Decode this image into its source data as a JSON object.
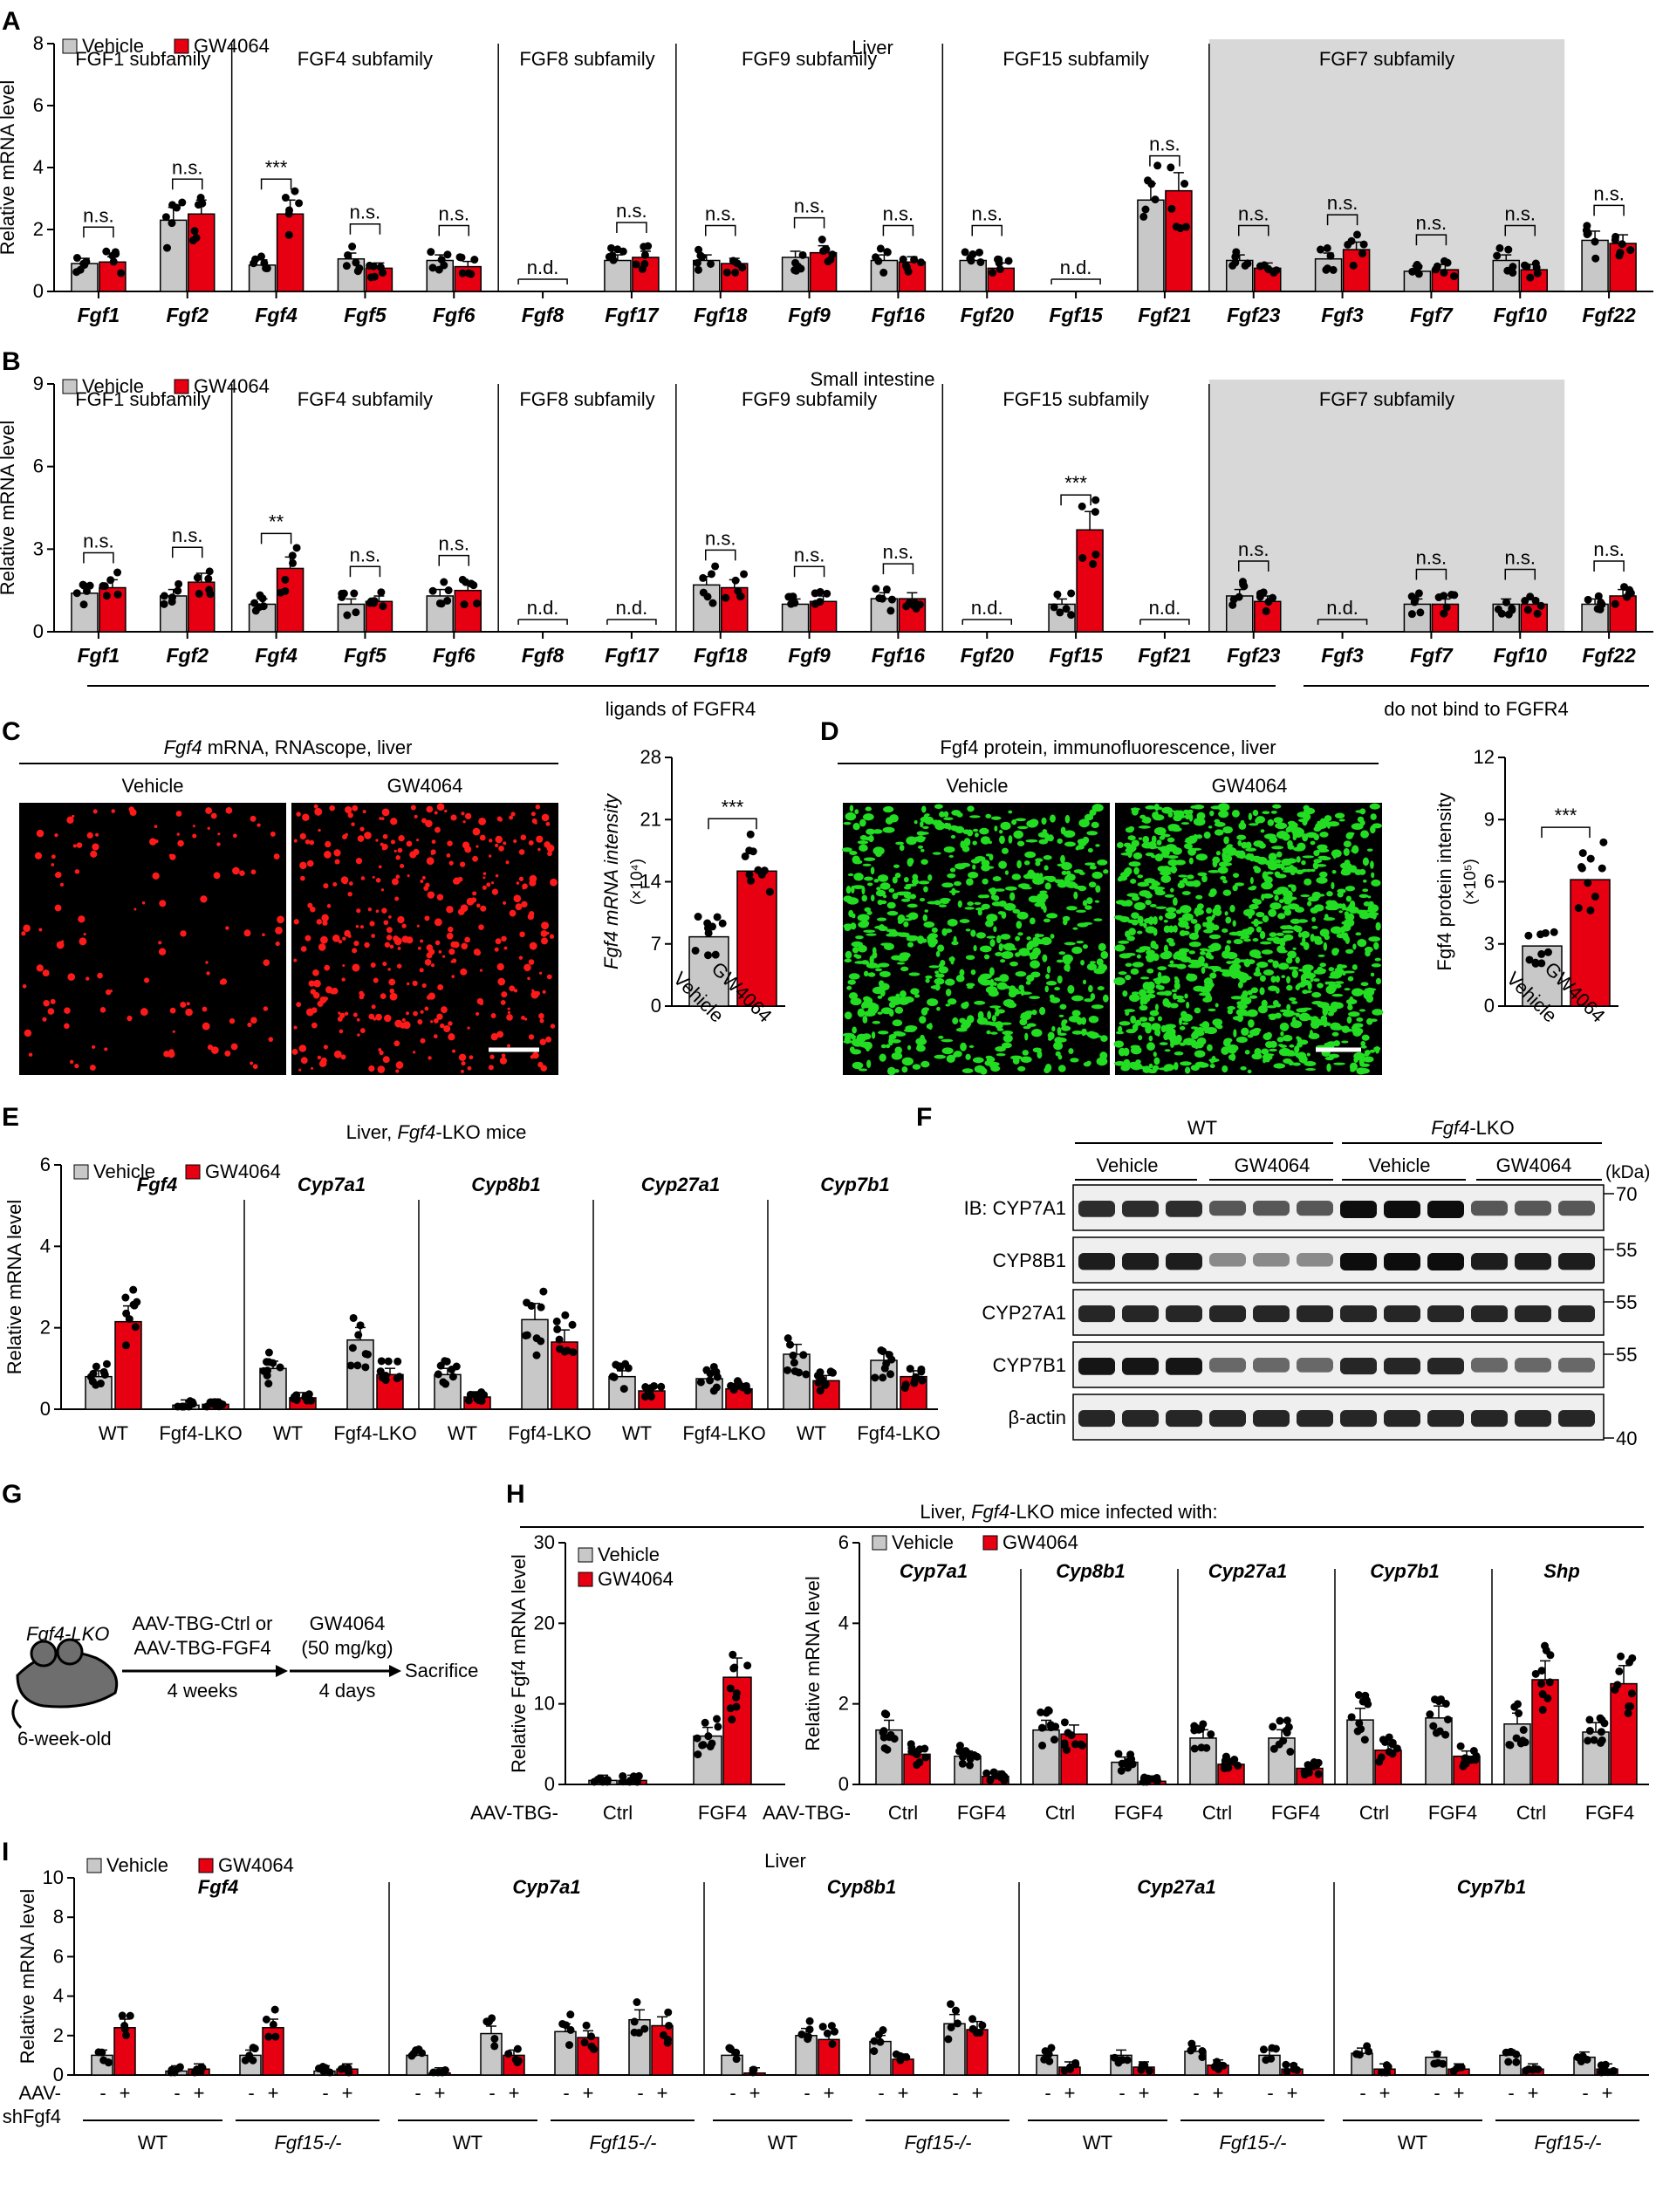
{
  "colors": {
    "vehicle": "#c8c8c8",
    "gw": "#e60012",
    "shade": "#d8d8d8",
    "red_micro": "#ff1a1a",
    "green_micro": "#22dd22"
  },
  "panel_letters": [
    "A",
    "B",
    "C",
    "D",
    "E",
    "F",
    "G",
    "H",
    "I"
  ],
  "legend": {
    "vehicle": "Vehicle",
    "gw": "GW4064"
  },
  "chart_data": [
    {
      "panel": "A",
      "type": "bar",
      "title": "Liver",
      "ylabel": "Relative mRNA level",
      "ylim": [
        0,
        8
      ],
      "yticks": [
        0,
        2,
        4,
        6,
        8
      ],
      "subfamilies": [
        {
          "name": "FGF1 subfamily",
          "genes": 2
        },
        {
          "name": "FGF4 subfamily",
          "genes": 3
        },
        {
          "name": "FGF8 subfamily",
          "genes": 2
        },
        {
          "name": "FGF9 subfamily",
          "genes": 3
        },
        {
          "name": "FGF15 subfamily",
          "genes": 3
        },
        {
          "name": "FGF7 subfamily",
          "genes": 4,
          "shaded": true
        }
      ],
      "categories": [
        "Fgf1",
        "Fgf2",
        "Fgf4",
        "Fgf5",
        "Fgf6",
        "Fgf8",
        "Fgf17",
        "Fgf18",
        "Fgf9",
        "Fgf16",
        "Fgf20",
        "Fgf15",
        "Fgf21",
        "Fgf23",
        "Fgf3",
        "Fgf7",
        "Fgf10",
        "Fgf22"
      ],
      "series": [
        {
          "name": "Vehicle",
          "values": [
            0.9,
            2.3,
            0.85,
            1.05,
            1.0,
            null,
            1.0,
            1.0,
            1.1,
            1.0,
            1.0,
            null,
            2.95,
            1.0,
            1.05,
            0.65,
            1.0,
            1.65
          ]
        },
        {
          "name": "GW4064",
          "values": [
            0.95,
            2.5,
            2.5,
            0.75,
            0.8,
            null,
            1.1,
            0.9,
            1.25,
            0.95,
            0.75,
            null,
            3.25,
            0.75,
            1.35,
            0.7,
            0.7,
            1.55
          ]
        }
      ],
      "annotations": [
        "n.s.",
        "n.s.",
        "***",
        "n.s.",
        "n.s.",
        "n.d.",
        "n.s.",
        "n.s.",
        "n.s.",
        "n.s.",
        "n.s.",
        "n.d.",
        "n.s.",
        "n.s.",
        "n.s.",
        "n.s.",
        "n.s.",
        "n.s."
      ]
    },
    {
      "panel": "B",
      "type": "bar",
      "title": "Small intestine",
      "ylabel": "Relative mRNA level",
      "ylim": [
        0,
        9
      ],
      "yticks": [
        0,
        3,
        6,
        9
      ],
      "subfamilies": [
        {
          "name": "FGF1 subfamily",
          "genes": 2
        },
        {
          "name": "FGF4 subfamily",
          "genes": 3
        },
        {
          "name": "FGF8 subfamily",
          "genes": 2
        },
        {
          "name": "FGF9 subfamily",
          "genes": 3
        },
        {
          "name": "FGF15 subfamily",
          "genes": 3
        },
        {
          "name": "FGF7 subfamily",
          "genes": 4,
          "shaded": true
        }
      ],
      "categories": [
        "Fgf1",
        "Fgf2",
        "Fgf4",
        "Fgf5",
        "Fgf6",
        "Fgf8",
        "Fgf17",
        "Fgf18",
        "Fgf9",
        "Fgf16",
        "Fgf20",
        "Fgf15",
        "Fgf21",
        "Fgf23",
        "Fgf3",
        "Fgf7",
        "Fgf10",
        "Fgf22"
      ],
      "series": [
        {
          "name": "Vehicle",
          "values": [
            1.4,
            1.3,
            1.0,
            1.0,
            1.3,
            null,
            null,
            1.7,
            1.0,
            1.2,
            null,
            1.0,
            null,
            1.3,
            null,
            1.0,
            1.0,
            1.0
          ]
        },
        {
          "name": "GW4064",
          "values": [
            1.6,
            1.8,
            2.3,
            1.1,
            1.5,
            null,
            null,
            1.6,
            1.1,
            1.2,
            null,
            3.7,
            null,
            1.1,
            null,
            1.0,
            1.0,
            1.3
          ]
        }
      ],
      "annotations": [
        "n.s.",
        "n.s.",
        "**",
        "n.s.",
        "n.s.",
        "n.d.",
        "n.d.",
        "n.s.",
        "n.s.",
        "n.s.",
        "n.d.",
        "***",
        "n.d.",
        "n.s.",
        "n.d.",
        "n.s.",
        "n.s.",
        "n.s."
      ],
      "groups": [
        "ligands of FGFR4",
        "do not bind to FGFR4"
      ]
    },
    {
      "panel": "C",
      "type": "bar",
      "ylabel": "Fgf4 mRNA intensity",
      "ylabel_unit": "(×10⁴)",
      "ylim": [
        0,
        28
      ],
      "yticks": [
        0,
        7,
        14,
        21,
        28
      ],
      "categories": [
        "Vehicle",
        "GW4064"
      ],
      "values": [
        7.8,
        15.2
      ],
      "annotation": "***"
    },
    {
      "panel": "D",
      "type": "bar",
      "ylabel": "Fgf4 protein intensity",
      "ylabel_unit": "(×10⁵)",
      "ylim": [
        0,
        12
      ],
      "yticks": [
        0,
        3,
        6,
        9,
        12
      ],
      "categories": [
        "Vehicle",
        "GW4064"
      ],
      "values": [
        2.9,
        6.1
      ],
      "annotation": "***"
    },
    {
      "panel": "E",
      "type": "bar",
      "title": "Liver, Fgf4-LKO mice",
      "ylabel": "Relative mRNA level",
      "ylim": [
        0,
        6
      ],
      "yticks": [
        0,
        2,
        4,
        6
      ],
      "genes": [
        "Fgf4",
        "Cyp7a1",
        "Cyp8b1",
        "Cyp27a1",
        "Cyp7b1"
      ],
      "groups": [
        "WT",
        "Fgf4-LKO"
      ],
      "series": [
        {
          "name": "Vehicle",
          "values": [
            [
              0.8,
              0.1
            ],
            [
              1.0,
              1.7
            ],
            [
              0.85,
              2.2
            ],
            [
              0.8,
              0.75
            ],
            [
              1.35,
              1.2
            ]
          ]
        },
        {
          "name": "GW4064",
          "values": [
            [
              2.15,
              0.12
            ],
            [
              0.28,
              0.85
            ],
            [
              0.3,
              1.65
            ],
            [
              0.45,
              0.5
            ],
            [
              0.7,
              0.8
            ]
          ]
        }
      ]
    },
    {
      "panel": "H",
      "type": "bar",
      "title": "Liver, Fgf4-LKO mice infected with:",
      "left": {
        "ylabel": "Relative Fgf4 mRNA level",
        "ylim": [
          0,
          30
        ],
        "yticks": [
          0,
          10,
          20,
          30
        ],
        "groups": [
          "Ctrl",
          "FGF4"
        ],
        "series": [
          {
            "name": "Vehicle",
            "values": [
              0.5,
              6.0
            ]
          },
          {
            "name": "GW4064",
            "values": [
              0.5,
              13.3
            ]
          }
        ]
      },
      "right": {
        "ylabel": "Relative mRNA level",
        "ylim": [
          0,
          6
        ],
        "yticks": [
          0,
          2,
          4,
          6
        ],
        "genes": [
          "Cyp7a1",
          "Cyp8b1",
          "Cyp27a1",
          "Cyp7b1",
          "Shp"
        ],
        "groups": [
          "Ctrl",
          "FGF4"
        ],
        "series": [
          {
            "name": "Vehicle",
            "values": [
              [
                1.35,
                0.7
              ],
              [
                1.35,
                0.55
              ],
              [
                1.15,
                1.15
              ],
              [
                1.6,
                1.65
              ],
              [
                1.5,
                1.3
              ]
            ]
          },
          {
            "name": "GW4064",
            "values": [
              [
                0.75,
                0.2
              ],
              [
                1.25,
                0.08
              ],
              [
                0.5,
                0.4
              ],
              [
                0.85,
                0.7
              ],
              [
                2.6,
                2.5
              ]
            ]
          }
        ]
      }
    },
    {
      "panel": "I",
      "type": "bar",
      "title": "Liver",
      "ylabel": "Relative mRNA level",
      "ylim": [
        0,
        10
      ],
      "yticks": [
        0,
        2,
        4,
        6,
        8,
        10
      ],
      "genes": [
        "Fgf4",
        "Cyp7a1",
        "Cyp8b1",
        "Cyp27a1",
        "Cyp7b1"
      ],
      "series": [
        {
          "name": "Vehicle",
          "values": [
            [
              1.0,
              0.2,
              1.0,
              0.2
            ],
            [
              1.0,
              2.1,
              2.2,
              2.8
            ],
            [
              1.0,
              2.0,
              1.7,
              2.6
            ],
            [
              1.0,
              1.0,
              1.2,
              1.0
            ],
            [
              1.1,
              0.9,
              1.0,
              0.9
            ]
          ]
        },
        {
          "name": "GW4064",
          "values": [
            [
              2.4,
              0.3,
              2.4,
              0.3
            ],
            [
              0.1,
              1.0,
              1.9,
              2.5
            ],
            [
              0.1,
              1.8,
              0.8,
              2.3
            ],
            [
              0.4,
              0.4,
              0.5,
              0.3
            ],
            [
              0.3,
              0.3,
              0.3,
              0.3
            ]
          ]
        }
      ]
    }
  ],
  "text": {
    "a_title": "Liver",
    "b_title": "Small intestine",
    "ligands": "ligands of FGFR4",
    "nobind": "do not bind to FGFR4",
    "c_title_gene": "Fgf4",
    "c_title_rest": " mRNA, RNAscope, liver",
    "c_veh": "Vehicle",
    "c_gw": "GW4064",
    "d_title": "Fgf4 protein, immunofluorescence, liver",
    "d_veh": "Vehicle",
    "d_gw": "GW4064",
    "e_title_a": "Liver, ",
    "e_title_b": "Fgf4",
    "e_title_c": "-LKO mice",
    "f_wt": "WT",
    "f_lko_a": "Fgf4",
    "f_lko_b": "-LKO",
    "f_veh": "Vehicle",
    "f_gw": "GW4064",
    "f_kda": "(kDa)",
    "f_rows": [
      "IB: CYP7A1",
      "CYP8B1",
      "CYP27A1",
      "CYP7B1",
      "β-actin"
    ],
    "f_mw": [
      "70",
      "55",
      "55",
      "55",
      "40"
    ],
    "g_mouse": "Fgf4-LKO",
    "g_age": "6-week-old",
    "g_step1a": "AAV-TBG-Ctrl or",
    "g_step1b": "AAV-TBG-FGF4",
    "g_weeks": "4 weeks",
    "g_step2a": "GW4064",
    "g_step2b": "(50 mg/kg)",
    "g_days": "4 days",
    "g_sac": "Sacrifice",
    "h_title": "Liver, Fgf4-LKO mice infected with:",
    "h_aav": "AAV-TBG-",
    "h_ctrl": "Ctrl",
    "h_fgf4": "FGF4",
    "i_title": "Liver",
    "i_aav_a": "AAV-",
    "i_aav_b": "shFgf4",
    "i_wt": "WT",
    "i_fgf15": "Fgf15-/-",
    "ns": "n.s.",
    "nd": "n.d.",
    "s1": "*",
    "s2": "**",
    "s3": "***"
  }
}
